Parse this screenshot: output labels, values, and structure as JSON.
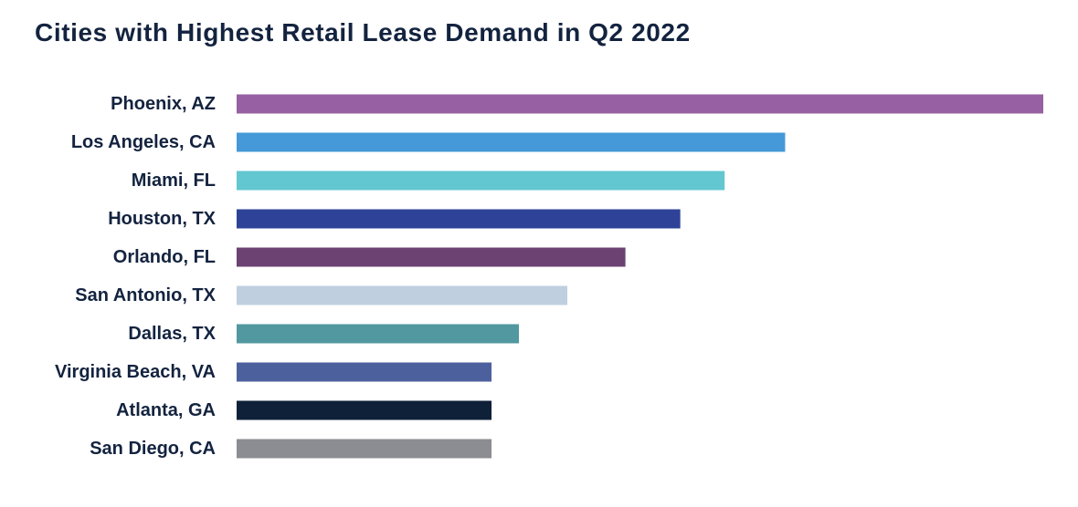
{
  "chart_data": {
    "type": "bar",
    "orientation": "horizontal",
    "title": "Cities with Highest Retail Lease Demand in Q2 2022",
    "xlabel": "",
    "ylabel": "",
    "grid": false,
    "legend": "none",
    "xlim": [
      0,
      100
    ],
    "categories": [
      "Phoenix, AZ",
      "Los Angeles, CA",
      "Miami, FL",
      "Houston, TX",
      "Orlando, FL",
      "San Antonio, TX",
      "Dallas, TX",
      "Virginia Beach, VA",
      "Atlanta, GA",
      "San Diego, CA"
    ],
    "values": [
      100,
      68,
      60.5,
      55,
      48.2,
      41,
      35,
      31.6,
      31.6,
      31.6
    ],
    "colors": [
      "#9660a3",
      "#4599d8",
      "#62c7d0",
      "#2e4397",
      "#6b4272",
      "#bfcfe0",
      "#5298a0",
      "#4d609e",
      "#0f2138",
      "#8c8d92"
    ]
  }
}
